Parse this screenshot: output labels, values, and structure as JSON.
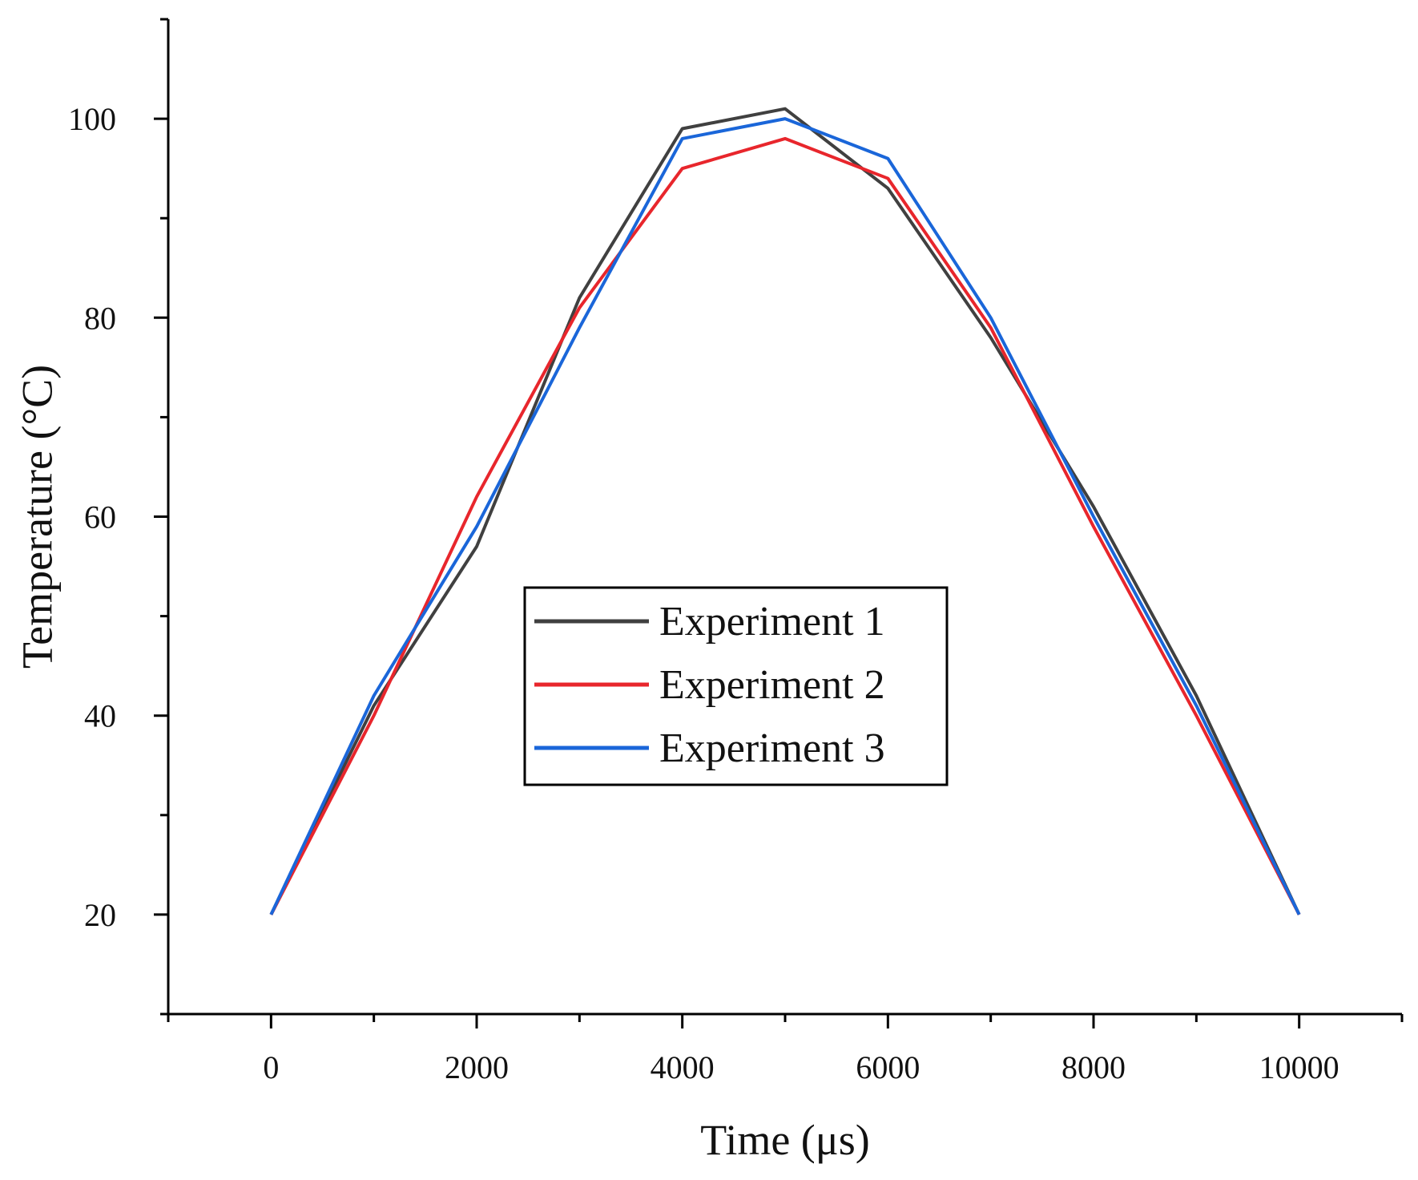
{
  "chart_data": {
    "type": "line",
    "title": "",
    "xlabel": "Time (μs)",
    "ylabel": "Temperature (°C)",
    "xlim": [
      -1000,
      11000
    ],
    "ylim": [
      10,
      110
    ],
    "x_ticks": [
      0,
      2000,
      4000,
      6000,
      8000,
      10000
    ],
    "x_minor_ticks": [
      -1000,
      1000,
      3000,
      5000,
      7000,
      9000,
      11000
    ],
    "y_ticks": [
      20,
      40,
      60,
      80,
      100
    ],
    "y_minor_ticks": [
      10,
      30,
      50,
      70,
      90,
      110
    ],
    "grid": false,
    "legend_position": "center",
    "x": [
      0,
      1000,
      2000,
      3000,
      4000,
      5000,
      6000,
      7000,
      8000,
      9000,
      10000
    ],
    "series": [
      {
        "name": "Experiment 1",
        "color": "#404040",
        "values": [
          20,
          41,
          57,
          82,
          99,
          101,
          93,
          78,
          61,
          42,
          20
        ]
      },
      {
        "name": "Experiment 2",
        "color": "#e8262c",
        "values": [
          20,
          40,
          62,
          81,
          95,
          98,
          94,
          79,
          59,
          40,
          20
        ]
      },
      {
        "name": "Experiment 3",
        "color": "#1a66d9",
        "values": [
          20,
          42,
          59,
          79,
          98,
          100,
          96,
          80,
          60,
          41,
          20
        ]
      }
    ]
  }
}
